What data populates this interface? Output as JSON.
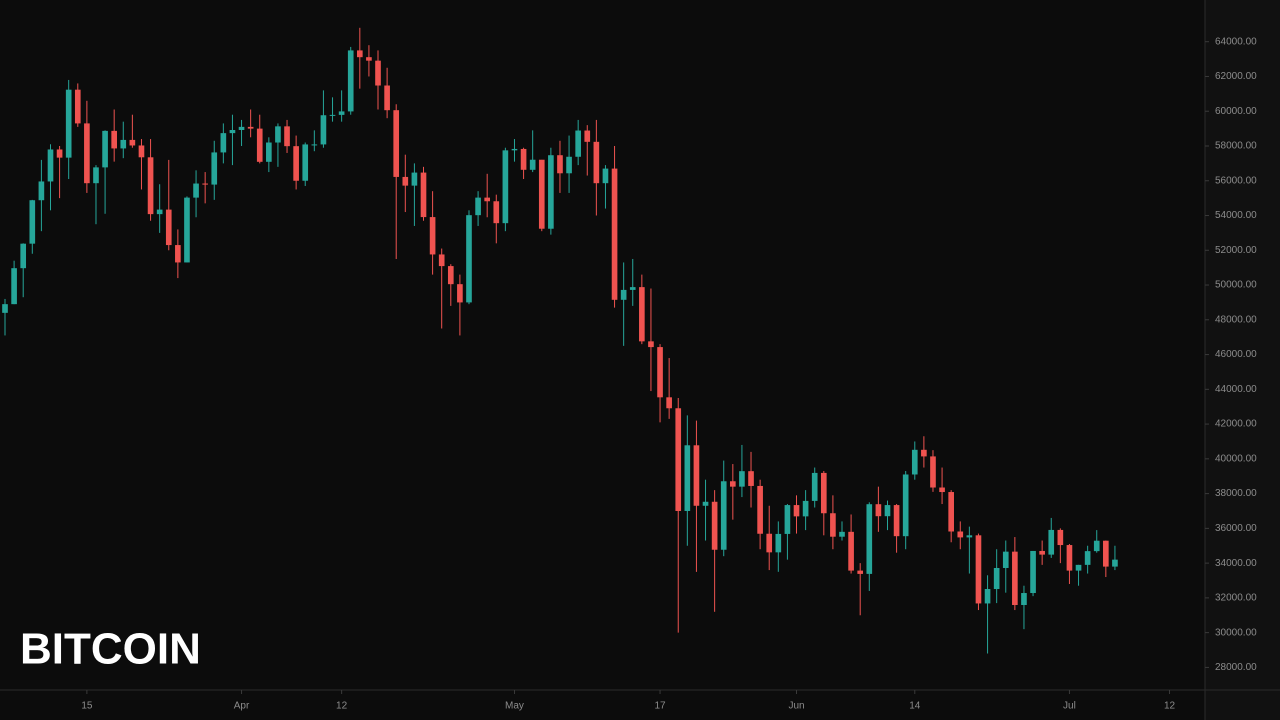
{
  "chart_data": {
    "type": "candlestick",
    "title": "BITCOIN",
    "up_color": "#26a69a",
    "down_color": "#ef5350",
    "grid": false,
    "xlim": [
      -0.55,
      131.9
    ],
    "xticks": [
      {
        "value": 9,
        "label": "15"
      },
      {
        "value": 26,
        "label": "Apr"
      },
      {
        "value": 37,
        "label": "12"
      },
      {
        "value": 56,
        "label": "May"
      },
      {
        "value": 72,
        "label": "17"
      },
      {
        "value": 87,
        "label": "Jun"
      },
      {
        "value": 100,
        "label": "14"
      },
      {
        "value": 117,
        "label": "Jul"
      },
      {
        "value": 128,
        "label": "12"
      }
    ],
    "ylim": [
      26700,
      66400
    ],
    "yticks": [
      {
        "value": 28000,
        "label": "28000.00"
      },
      {
        "value": 30000,
        "label": "30000.00"
      },
      {
        "value": 32000,
        "label": "32000.00"
      },
      {
        "value": 34000,
        "label": "34000.00"
      },
      {
        "value": 36000,
        "label": "36000.00"
      },
      {
        "value": 38000,
        "label": "38000.00"
      },
      {
        "value": 40000,
        "label": "40000.00"
      },
      {
        "value": 42000,
        "label": "42000.00"
      },
      {
        "value": 44000,
        "label": "44000.00"
      },
      {
        "value": 46000,
        "label": "46000.00"
      },
      {
        "value": 48000,
        "label": "48000.00"
      },
      {
        "value": 50000,
        "label": "50000.00"
      },
      {
        "value": 52000,
        "label": "52000.00"
      },
      {
        "value": 54000,
        "label": "54000.00"
      },
      {
        "value": 56000,
        "label": "56000.00"
      },
      {
        "value": 58000,
        "label": "58000.00"
      },
      {
        "value": 60000,
        "label": "60000.00"
      },
      {
        "value": 62000,
        "label": "62000.00"
      },
      {
        "value": 64000,
        "label": "64000.00"
      }
    ],
    "open": [
      48400,
      48900,
      50970,
      52380,
      54880,
      55960,
      57800,
      57330,
      61240,
      59300,
      55860,
      56770,
      58870,
      57860,
      58350,
      58030,
      57350,
      54080,
      54340,
      52300,
      51300,
      55030,
      55840,
      55780,
      57630,
      58740,
      58920,
      59100,
      59000,
      57090,
      58200,
      59130,
      57990,
      56000,
      58090,
      58090,
      59770,
      59790,
      59990,
      63500,
      63110,
      62910,
      61480,
      60060,
      56220,
      55720,
      56470,
      53910,
      51760,
      51090,
      50050,
      49000,
      54020,
      55030,
      54820,
      53560,
      57750,
      57830,
      56630,
      57210,
      53240,
      57470,
      56430,
      57380,
      58890,
      58240,
      55860,
      56700,
      49150,
      49720,
      49880,
      46760,
      46430,
      43540,
      42910,
      37000,
      40780,
      37300,
      37530,
      34770,
      38710,
      38400,
      39290,
      38440,
      35690,
      34620,
      35680,
      37340,
      36690,
      37580,
      39190,
      36870,
      35520,
      35800,
      33570,
      33380,
      37390,
      36700,
      37340,
      35550,
      39100,
      40520,
      40140,
      38350,
      38090,
      35820,
      35480,
      35600,
      31680,
      32510,
      33720,
      34660,
      31590,
      32280,
      34700,
      34490,
      35910,
      35040,
      33570,
      33900,
      34690,
      35290,
      33800
    ],
    "high": [
      49200,
      51400,
      52400,
      54900,
      57200,
      58100,
      58000,
      61800,
      61600,
      60600,
      56900,
      58900,
      60100,
      59400,
      59800,
      58400,
      58400,
      55800,
      57200,
      53200,
      55100,
      56600,
      56500,
      58300,
      59300,
      59800,
      59500,
      60100,
      59800,
      58500,
      59300,
      59500,
      58600,
      58200,
      58900,
      61200,
      60800,
      61200,
      63700,
      64800,
      63800,
      63500,
      62500,
      60400,
      57500,
      57000,
      56800,
      55400,
      52100,
      51200,
      50600,
      54300,
      55400,
      56400,
      55200,
      57900,
      58400,
      57900,
      58900,
      57200,
      57900,
      58300,
      58600,
      59500,
      59200,
      59500,
      56900,
      58000,
      51300,
      51500,
      50600,
      49800,
      46600,
      45800,
      43500,
      42500,
      42200,
      38800,
      38200,
      39900,
      39700,
      40800,
      40400,
      38800,
      37300,
      36400,
      37400,
      37900,
      38200,
      39500,
      39300,
      37900,
      36400,
      36800,
      34000,
      37500,
      38400,
      37600,
      37400,
      39300,
      41000,
      41300,
      40500,
      39500,
      38200,
      36400,
      36100,
      35700,
      33300,
      34800,
      35300,
      35500,
      32700,
      34700,
      35300,
      36600,
      36000,
      35100,
      33900,
      35000,
      35900,
      35300,
      35000
    ],
    "low": [
      47100,
      48900,
      49300,
      51800,
      53100,
      54300,
      55000,
      56100,
      59100,
      55300,
      53500,
      54100,
      57100,
      57300,
      57900,
      55500,
      53700,
      53000,
      52000,
      50400,
      51300,
      53900,
      54700,
      54900,
      57000,
      56900,
      58000,
      58500,
      57000,
      56500,
      56800,
      57600,
      55500,
      55700,
      57700,
      57900,
      59400,
      59400,
      59800,
      61300,
      62000,
      60100,
      59600,
      51500,
      54200,
      53400,
      53700,
      50600,
      47500,
      48800,
      47100,
      48900,
      53400,
      53900,
      52400,
      53100,
      57100,
      56100,
      56500,
      53100,
      52900,
      55300,
      55300,
      56900,
      56300,
      54000,
      54400,
      48700,
      46500,
      48800,
      46600,
      43900,
      42100,
      42300,
      30000,
      35000,
      33500,
      35300,
      31200,
      34400,
      36500,
      37800,
      37200,
      34800,
      33600,
      33500,
      34200,
      35700,
      35900,
      37200,
      35600,
      34800,
      35300,
      33400,
      31000,
      32400,
      35800,
      35900,
      34600,
      34800,
      38800,
      39500,
      38100,
      37400,
      35200,
      34800,
      33400,
      31300,
      28800,
      31700,
      32300,
      31300,
      30200,
      32100,
      33900,
      34300,
      34000,
      32800,
      32700,
      33400,
      34600,
      33200,
      33600
    ],
    "close": [
      48900,
      50970,
      52380,
      54880,
      55960,
      57800,
      57330,
      61240,
      59300,
      55860,
      56770,
      58870,
      57860,
      58350,
      58030,
      57350,
      54080,
      54340,
      52300,
      51300,
      55030,
      55840,
      55780,
      57630,
      58740,
      58920,
      59100,
      59000,
      57090,
      58200,
      59130,
      57990,
      56000,
      58090,
      58090,
      59770,
      59790,
      59990,
      63500,
      63110,
      62910,
      61480,
      60060,
      56220,
      55720,
      56470,
      53910,
      51760,
      51090,
      50050,
      49000,
      54020,
      55030,
      54820,
      53560,
      57750,
      57830,
      56630,
      57210,
      53240,
      57470,
      56430,
      57380,
      58890,
      58240,
      55860,
      56700,
      49150,
      49720,
      49880,
      46760,
      46430,
      43540,
      42910,
      37000,
      40780,
      37300,
      37530,
      34770,
      38710,
      38400,
      39290,
      38440,
      35690,
      34620,
      35680,
      37340,
      36690,
      37580,
      39190,
      36870,
      35520,
      35800,
      33570,
      33380,
      37390,
      36700,
      37340,
      35550,
      39100,
      40520,
      40140,
      38350,
      38090,
      35820,
      35480,
      35600,
      31680,
      32510,
      33720,
      34660,
      31590,
      32280,
      34700,
      34490,
      35910,
      35040,
      33570,
      33900,
      34690,
      35290,
      33800,
      34200
    ]
  }
}
